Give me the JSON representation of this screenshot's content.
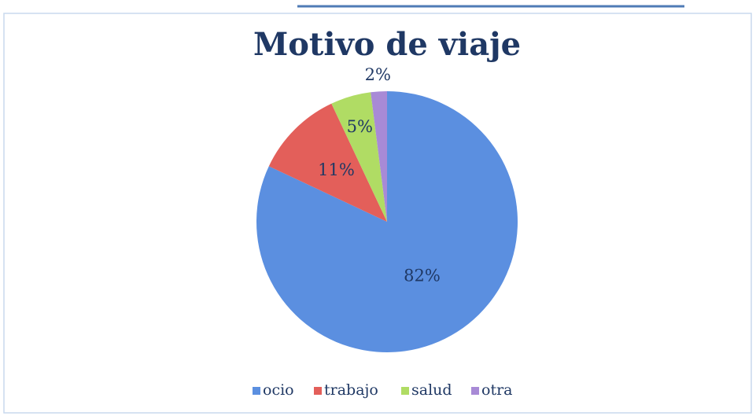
{
  "chart_data": {
    "type": "pie",
    "title": "Motivo de viaje",
    "categories": [
      "ocio",
      "trabajo",
      "salud",
      "otra"
    ],
    "values": [
      82,
      11,
      5,
      2
    ],
    "value_labels": [
      "82%",
      "11%",
      "5%",
      "2%"
    ],
    "colors": [
      "#5b8fe0",
      "#e35f5a",
      "#b0dc64",
      "#a88ad6"
    ],
    "legend": "bottom"
  }
}
